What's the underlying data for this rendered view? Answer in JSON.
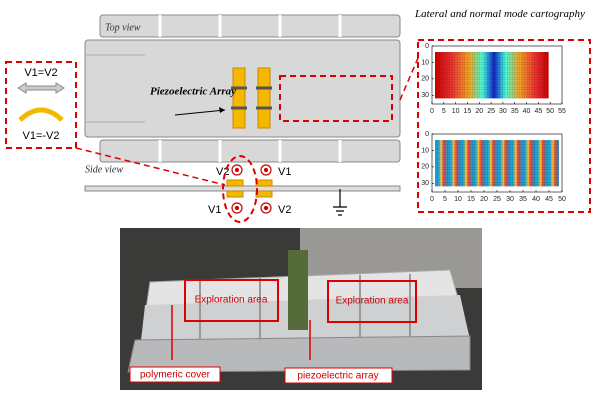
{
  "top_view": {
    "label": "Top view",
    "array_label": "Piezoelectric Array"
  },
  "side_view": {
    "label": "Side view",
    "electrodes": [
      "V2",
      "V1",
      "V1",
      "V2"
    ]
  },
  "modes": [
    "V1=V2",
    "V1=-V2"
  ],
  "cartography": {
    "title": "Lateral and normal mode cartography",
    "maps": [
      {
        "xticks": [
          0,
          5,
          10,
          15,
          20,
          25,
          30,
          35,
          40,
          45,
          50,
          55
        ],
        "yticks": [
          0,
          10,
          20,
          30
        ]
      },
      {
        "xticks": [
          0,
          5,
          10,
          15,
          20,
          25,
          30,
          35,
          40,
          45,
          50
        ],
        "yticks": [
          0,
          10,
          20,
          30
        ]
      }
    ]
  },
  "photo": {
    "areas": [
      "Exploration area",
      "Exploration area"
    ],
    "cover_label": "polymeric cover",
    "array_label": "piezoelectric array"
  }
}
